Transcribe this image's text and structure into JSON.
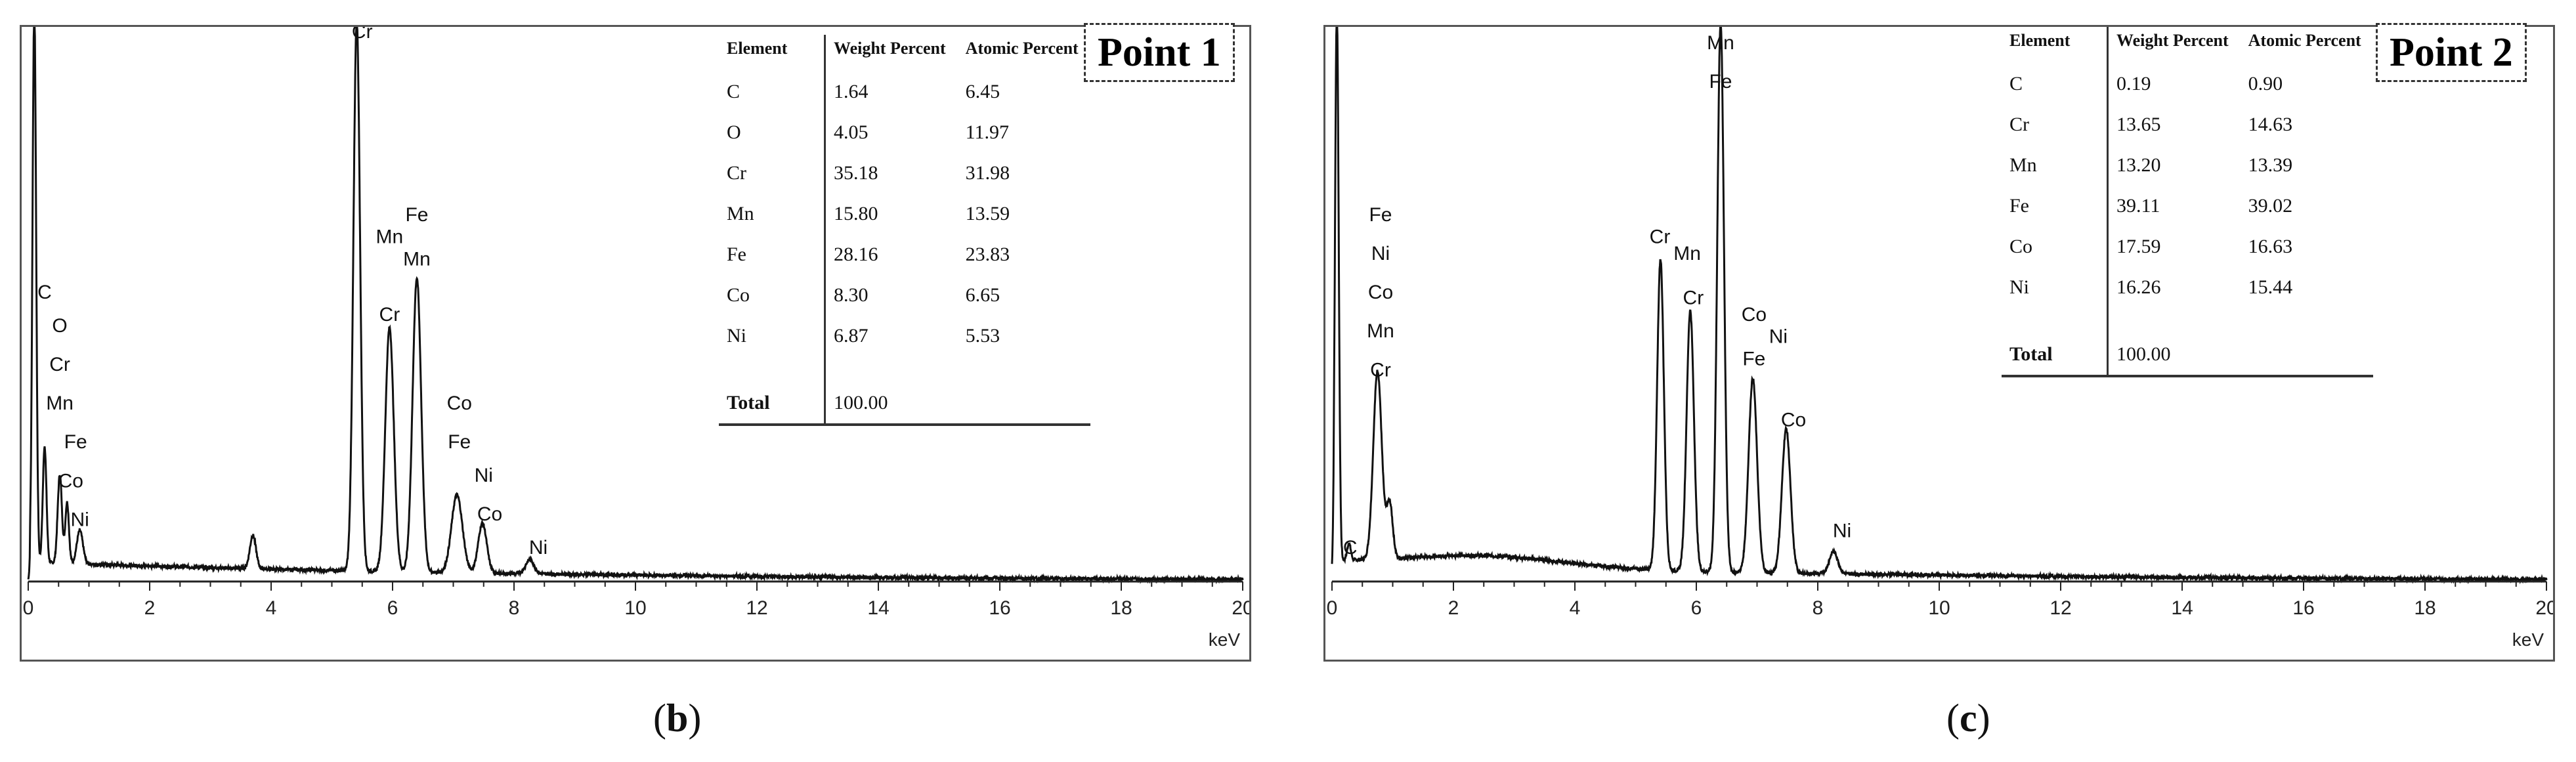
{
  "chart_data": [
    {
      "type": "line",
      "panel": "b",
      "xlabel": "keV",
      "xlim": [
        0,
        20
      ],
      "x_ticks": [
        "0",
        "2",
        "4",
        "6",
        "8",
        "10",
        "12",
        "14",
        "16",
        "18",
        "20"
      ],
      "spectrum": {
        "baseline": 0.035,
        "peaks": [
          {
            "x": 0.1,
            "y": 1.0,
            "w": 0.03
          },
          {
            "x": 0.27,
            "y": 0.21,
            "w": 0.03
          },
          {
            "x": 0.52,
            "y": 0.16,
            "w": 0.035
          },
          {
            "x": 0.64,
            "y": 0.11,
            "w": 0.03
          },
          {
            "x": 0.85,
            "y": 0.06,
            "w": 0.05
          },
          {
            "x": 3.7,
            "y": 0.06,
            "w": 0.05
          },
          {
            "x": 5.41,
            "y": 0.99,
            "w": 0.055
          },
          {
            "x": 5.95,
            "y": 0.44,
            "w": 0.07
          },
          {
            "x": 6.4,
            "y": 0.53,
            "w": 0.07
          },
          {
            "x": 7.06,
            "y": 0.14,
            "w": 0.09
          },
          {
            "x": 7.48,
            "y": 0.09,
            "w": 0.07
          },
          {
            "x": 8.26,
            "y": 0.025,
            "w": 0.07
          }
        ]
      },
      "peak_labels": [
        {
          "text": "C",
          "x": 0.27,
          "y": 0.51
        },
        {
          "text": "O",
          "x": 0.52,
          "y": 0.45
        },
        {
          "text": "Cr",
          "x": 0.52,
          "y": 0.38
        },
        {
          "text": "Mn",
          "x": 0.52,
          "y": 0.31
        },
        {
          "text": "Fe",
          "x": 0.78,
          "y": 0.24
        },
        {
          "text": "Co",
          "x": 0.7,
          "y": 0.17
        },
        {
          "text": "Ni",
          "x": 0.85,
          "y": 0.1
        },
        {
          "text": "Cr",
          "x": 5.5,
          "y": 0.98
        },
        {
          "text": "Mn",
          "x": 5.95,
          "y": 0.61
        },
        {
          "text": "Fe",
          "x": 6.4,
          "y": 0.65
        },
        {
          "text": "Mn",
          "x": 6.4,
          "y": 0.57
        },
        {
          "text": "Cr",
          "x": 5.95,
          "y": 0.47
        },
        {
          "text": "Co",
          "x": 7.1,
          "y": 0.31
        },
        {
          "text": "Fe",
          "x": 7.1,
          "y": 0.24
        },
        {
          "text": "Ni",
          "x": 7.5,
          "y": 0.18
        },
        {
          "text": "Co",
          "x": 7.6,
          "y": 0.11
        },
        {
          "text": "Ni",
          "x": 8.4,
          "y": 0.05
        }
      ],
      "point_label": "Point 1",
      "table": {
        "headers": [
          "Element",
          "Weight Percent",
          "Atomic Percent"
        ],
        "rows": [
          [
            "C",
            "1.64",
            "6.45"
          ],
          [
            "O",
            "4.05",
            "11.97"
          ],
          [
            "Cr",
            "35.18",
            "31.98"
          ],
          [
            "Mn",
            "15.80",
            "13.59"
          ],
          [
            "Fe",
            "28.16",
            "23.83"
          ],
          [
            "Co",
            "8.30",
            "6.65"
          ],
          [
            "Ni",
            "6.87",
            "5.53"
          ]
        ],
        "total": [
          "Total",
          "100.00"
        ]
      },
      "caption": "b"
    },
    {
      "type": "line",
      "panel": "c",
      "xlabel": "keV",
      "xlim": [
        0,
        20
      ],
      "x_ticks": [
        "0",
        "2",
        "4",
        "6",
        "8",
        "10",
        "12",
        "14",
        "16",
        "18",
        "20"
      ],
      "spectrum": {
        "baseline": 0.035,
        "peaks": [
          {
            "x": 0.08,
            "y": 1.0,
            "w": 0.03
          },
          {
            "x": 0.28,
            "y": 0.03,
            "w": 0.03
          },
          {
            "x": 0.75,
            "y": 0.34,
            "w": 0.07
          },
          {
            "x": 0.95,
            "y": 0.1,
            "w": 0.05
          },
          {
            "x": 2.5,
            "y": 0.02,
            "w": 1.3
          },
          {
            "x": 5.41,
            "y": 0.56,
            "w": 0.055
          },
          {
            "x": 5.9,
            "y": 0.47,
            "w": 0.06
          },
          {
            "x": 6.4,
            "y": 0.99,
            "w": 0.055
          },
          {
            "x": 6.93,
            "y": 0.35,
            "w": 0.07
          },
          {
            "x": 7.48,
            "y": 0.26,
            "w": 0.07
          },
          {
            "x": 8.26,
            "y": 0.04,
            "w": 0.07
          }
        ]
      },
      "peak_labels": [
        {
          "text": "Fe",
          "x": 0.8,
          "y": 0.65
        },
        {
          "text": "Ni",
          "x": 0.8,
          "y": 0.58
        },
        {
          "text": "Co",
          "x": 0.8,
          "y": 0.51
        },
        {
          "text": "Mn",
          "x": 0.8,
          "y": 0.44
        },
        {
          "text": "Cr",
          "x": 0.8,
          "y": 0.37
        },
        {
          "text": "C",
          "x": 0.3,
          "y": 0.05
        },
        {
          "text": "Cr",
          "x": 5.4,
          "y": 0.61
        },
        {
          "text": "Mn",
          "x": 5.85,
          "y": 0.58
        },
        {
          "text": "Cr",
          "x": 5.95,
          "y": 0.5
        },
        {
          "text": "Mn",
          "x": 6.4,
          "y": 0.96
        },
        {
          "text": "Fe",
          "x": 6.4,
          "y": 0.89
        },
        {
          "text": "Co",
          "x": 6.95,
          "y": 0.47
        },
        {
          "text": "Ni",
          "x": 7.35,
          "y": 0.43
        },
        {
          "text": "Fe",
          "x": 6.95,
          "y": 0.39
        },
        {
          "text": "Co",
          "x": 7.6,
          "y": 0.28
        },
        {
          "text": "Ni",
          "x": 8.4,
          "y": 0.08
        }
      ],
      "point_label": "Point 2",
      "table": {
        "headers": [
          "Element",
          "Weight Percent",
          "Atomic Percent"
        ],
        "rows": [
          [
            "C",
            "0.19",
            "0.90"
          ],
          [
            "Cr",
            "13.65",
            "14.63"
          ],
          [
            "Mn",
            "13.20",
            "13.39"
          ],
          [
            "Fe",
            "39.11",
            "39.02"
          ],
          [
            "Co",
            "17.59",
            "16.63"
          ],
          [
            "Ni",
            "16.26",
            "15.44"
          ]
        ],
        "total": [
          "Total",
          "100.00"
        ]
      },
      "caption": "c"
    }
  ]
}
